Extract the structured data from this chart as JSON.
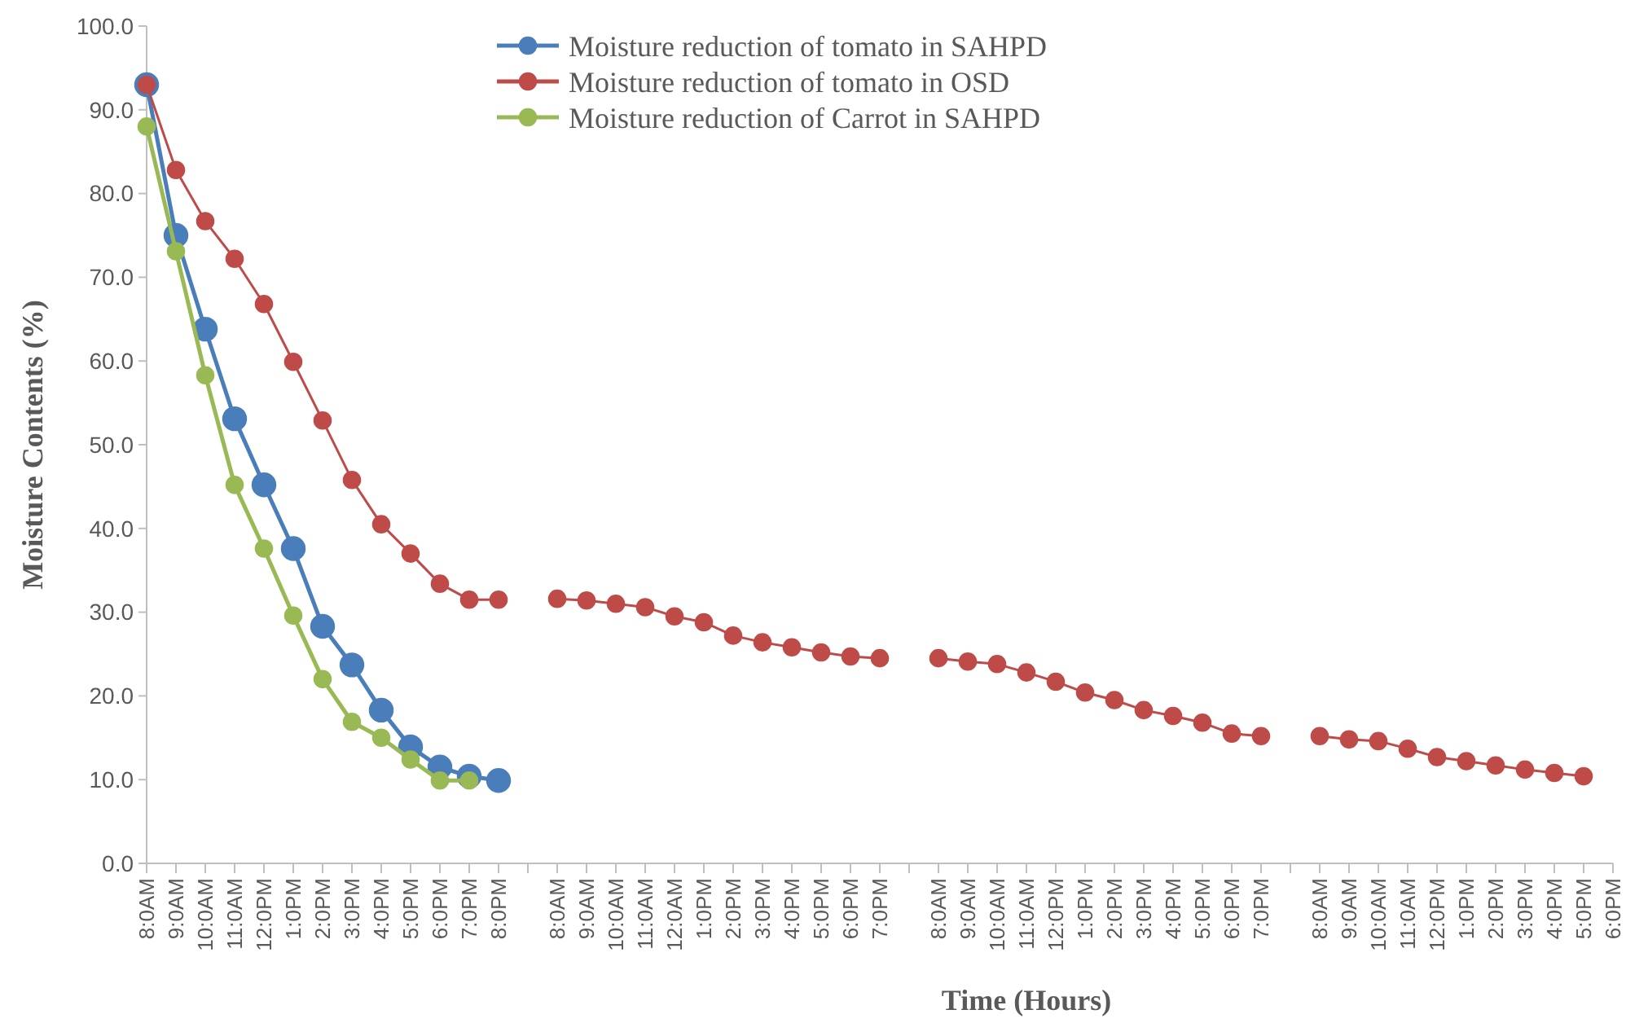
{
  "chart_data": {
    "type": "line",
    "xlabel": "Time (Hours)",
    "ylabel": "Moisture Contents (%)",
    "categories": [
      "8:0AM",
      "9:0AM",
      "10:0AM",
      "11:0AM",
      "12:0PM",
      "1:0PM",
      "2:0PM",
      "3:0PM",
      "4:0PM",
      "5:0PM",
      "6:0PM",
      "7:0PM",
      "8:0PM",
      null,
      "8:0AM",
      "9:0AM",
      "10:0AM",
      "11:0AM",
      "12:0AM",
      "1:0PM",
      "2:0PM",
      "3:0PM",
      "4:0PM",
      "5:0PM",
      "6:0PM",
      "7:0PM",
      null,
      "8:0AM",
      "9:0AM",
      "10:0AM",
      "11:0AM",
      "12:0PM",
      "1:0PM",
      "2:0PM",
      "3:0PM",
      "4:0PM",
      "5:0PM",
      "6:0PM",
      "7:0PM",
      null,
      "8:0AM",
      "9:0AM",
      "10:0AM",
      "11:0AM",
      "12:0PM",
      "1:0PM",
      "2:0PM",
      "3:0PM",
      "4:0PM",
      "5:0PM",
      "6:0PM"
    ],
    "series": [
      {
        "name": "Moisture reduction of tomato in SAHPD",
        "color": "#4a7ebb",
        "values": [
          93.0,
          75.0,
          63.8,
          53.1,
          45.2,
          37.6,
          28.3,
          23.7,
          18.3,
          13.9,
          11.5,
          10.4,
          9.9,
          null,
          null,
          null,
          null,
          null,
          null,
          null,
          null,
          null,
          null,
          null,
          null,
          null,
          null,
          null,
          null,
          null,
          null,
          null,
          null,
          null,
          null,
          null,
          null,
          null,
          null,
          null,
          null,
          null,
          null,
          null,
          null,
          null,
          null,
          null,
          null,
          null,
          null
        ]
      },
      {
        "name": "Moisture reduction of tomato in OSD",
        "color": "#be4b48",
        "values": [
          93.0,
          82.8,
          76.7,
          72.2,
          66.8,
          59.9,
          52.9,
          45.8,
          40.5,
          37.0,
          33.4,
          31.5,
          31.5,
          null,
          31.6,
          31.4,
          31.0,
          30.6,
          29.5,
          28.8,
          27.2,
          26.4,
          25.8,
          25.2,
          24.7,
          24.5,
          null,
          24.5,
          24.1,
          23.8,
          22.8,
          21.7,
          20.4,
          19.5,
          18.3,
          17.6,
          16.8,
          15.5,
          15.2,
          null,
          15.2,
          14.8,
          14.6,
          13.7,
          12.7,
          12.2,
          11.7,
          11.2,
          10.8,
          10.4,
          null
        ]
      },
      {
        "name": "Moisture reduction of Carrot in SAHPD",
        "color": "#98b954",
        "values": [
          88.0,
          73.1,
          58.3,
          45.2,
          37.6,
          29.6,
          22.0,
          16.9,
          15.0,
          12.4,
          9.9,
          9.9,
          null,
          null,
          null,
          null,
          null,
          null,
          null,
          null,
          null,
          null,
          null,
          null,
          null,
          null,
          null,
          null,
          null,
          null,
          null,
          null,
          null,
          null,
          null,
          null,
          null,
          null,
          null,
          null,
          null,
          null,
          null,
          null,
          null,
          null,
          null,
          null,
          null,
          null,
          null
        ]
      }
    ],
    "ylim": [
      0,
      100
    ],
    "yticks": [
      {
        "value": 0,
        "label": "0.0"
      },
      {
        "value": 10,
        "label": "10.0"
      },
      {
        "value": 20,
        "label": "20.0"
      },
      {
        "value": 30,
        "label": "30.0"
      },
      {
        "value": 40,
        "label": "40.0"
      },
      {
        "value": 50,
        "label": "50.0"
      },
      {
        "value": 60,
        "label": "60.0"
      },
      {
        "value": 70,
        "label": "70.0"
      },
      {
        "value": 80,
        "label": "80.0"
      },
      {
        "value": 90,
        "label": "90.0"
      },
      {
        "value": 100,
        "label": "100.0"
      }
    ],
    "grid": false,
    "legend": "top",
    "marker": "circle",
    "line_style": "solid"
  }
}
